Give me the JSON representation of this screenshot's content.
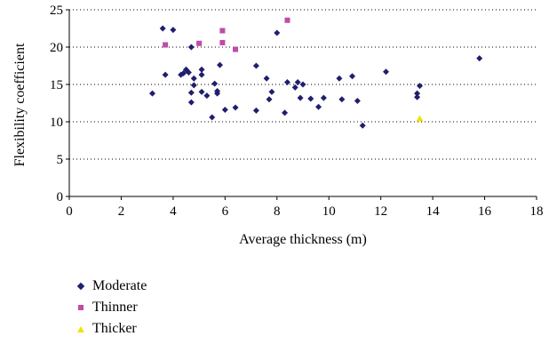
{
  "chart_data": {
    "type": "scatter",
    "xlabel": "Average thickness (m)",
    "ylabel": "Flexibility coefficient",
    "xlim": [
      0,
      18
    ],
    "ylim": [
      0,
      25
    ],
    "x_ticks": [
      "0",
      "2",
      "4",
      "6",
      "8",
      "10",
      "12",
      "14",
      "16",
      "18"
    ],
    "y_ticks": [
      "0",
      "5",
      "10",
      "15",
      "20",
      "25"
    ],
    "grid": "horizontal dotted",
    "legend_position": "bottom-left",
    "series": [
      {
        "name": "Moderate",
        "marker": "diamond",
        "color": "#1F1F6E",
        "points": [
          [
            3.2,
            13.8
          ],
          [
            3.6,
            22.5
          ],
          [
            3.7,
            16.3
          ],
          [
            4.0,
            22.3
          ],
          [
            4.3,
            16.3
          ],
          [
            4.4,
            16.5
          ],
          [
            4.5,
            17.0
          ],
          [
            4.6,
            16.6
          ],
          [
            4.7,
            20.0
          ],
          [
            4.7,
            13.9
          ],
          [
            4.7,
            12.6
          ],
          [
            4.8,
            15.8
          ],
          [
            4.8,
            14.9
          ],
          [
            5.1,
            17.0
          ],
          [
            5.1,
            16.3
          ],
          [
            5.1,
            14.0
          ],
          [
            5.3,
            13.5
          ],
          [
            5.5,
            10.6
          ],
          [
            5.6,
            15.1
          ],
          [
            5.7,
            14.1
          ],
          [
            5.7,
            13.8
          ],
          [
            5.8,
            17.6
          ],
          [
            6.0,
            11.6
          ],
          [
            6.4,
            11.9
          ],
          [
            7.2,
            17.5
          ],
          [
            7.2,
            11.5
          ],
          [
            7.6,
            15.8
          ],
          [
            7.7,
            13.0
          ],
          [
            7.8,
            14.0
          ],
          [
            8.0,
            21.9
          ],
          [
            8.3,
            11.2
          ],
          [
            8.4,
            15.3
          ],
          [
            8.7,
            14.6
          ],
          [
            8.8,
            15.3
          ],
          [
            8.9,
            13.2
          ],
          [
            9.0,
            15.0
          ],
          [
            9.3,
            13.1
          ],
          [
            9.6,
            12.0
          ],
          [
            9.8,
            13.2
          ],
          [
            10.4,
            15.8
          ],
          [
            10.5,
            13.0
          ],
          [
            10.9,
            16.1
          ],
          [
            11.1,
            12.8
          ],
          [
            11.3,
            9.5
          ],
          [
            12.2,
            16.7
          ],
          [
            13.4,
            13.8
          ],
          [
            13.4,
            13.3
          ],
          [
            13.5,
            14.8
          ],
          [
            15.8,
            18.5
          ]
        ]
      },
      {
        "name": "Thinner",
        "marker": "square",
        "color": "#C04BA8",
        "points": [
          [
            3.7,
            20.3
          ],
          [
            5.0,
            20.5
          ],
          [
            5.9,
            22.2
          ],
          [
            5.9,
            20.6
          ],
          [
            6.4,
            19.7
          ],
          [
            8.4,
            23.6
          ]
        ]
      },
      {
        "name": "Thicker",
        "marker": "triangle",
        "color": "#F2E200",
        "points": [
          [
            13.5,
            10.4
          ]
        ]
      }
    ]
  }
}
